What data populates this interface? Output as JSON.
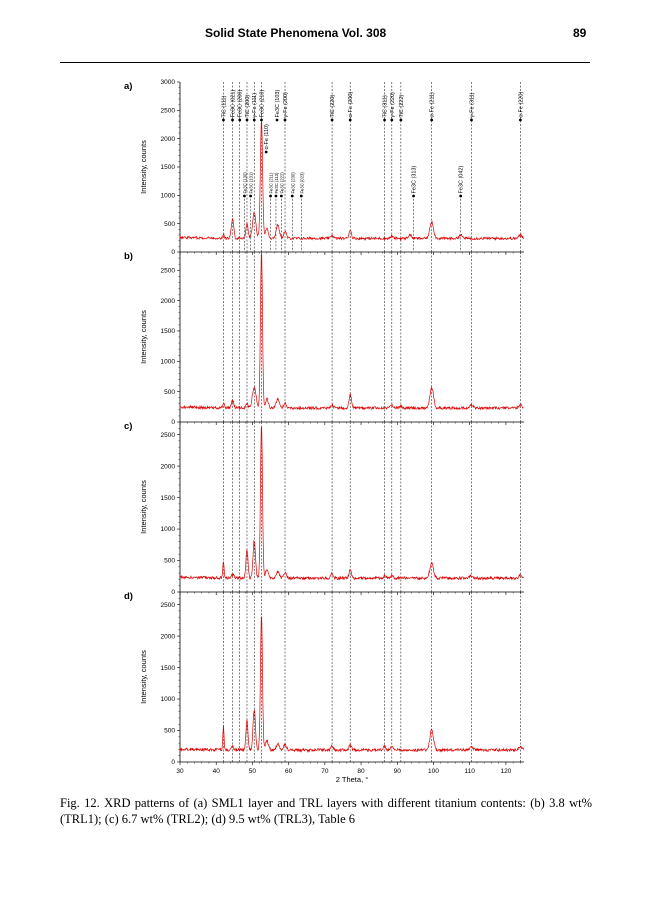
{
  "header": {
    "journal": "Solid State Phenomena Vol. 308",
    "page_number": "89"
  },
  "caption": "Fig. 12. XRD patterns of (a) SML1 layer and TRL layers with different titanium contents: (b) 3.8 wt% (TRL1); (c) 6.7 wt% (TRL2); (d) 9.5 wt% (TRL3), Table 6",
  "colors": {
    "pattern": "#dd0000",
    "axes": "#000000",
    "guide": "#000000"
  },
  "chart_data": {
    "type": "line",
    "xlabel": "2 Theta, °",
    "xlim": [
      30,
      125
    ],
    "x_ticks": [
      30,
      40,
      50,
      60,
      70,
      80,
      90,
      100,
      110,
      120
    ],
    "peak_lines_2theta": [
      42.0,
      44.5,
      46.5,
      48.5,
      50.5,
      52.5,
      59.0,
      72.0,
      77.0,
      86.5,
      88.5,
      91.0,
      99.5,
      110.5,
      124.0
    ],
    "secondary_lines_2theta": [
      47.8,
      49.5,
      55.0,
      56.5,
      58.0,
      61.0,
      63.5,
      94.5,
      107.5
    ],
    "panels": [
      {
        "label": "a)",
        "ylabel": "Intensity, counts",
        "ylim": [
          0,
          3000
        ],
        "y_ticks": [
          0,
          500,
          1000,
          1500,
          2000,
          2500,
          3000
        ],
        "baseline": 240,
        "peaks": [
          [
            42.0,
            60,
            0.4
          ],
          [
            44.5,
            330,
            0.6
          ],
          [
            48.5,
            250,
            0.6
          ],
          [
            50.5,
            460,
            0.8
          ],
          [
            52.5,
            2100,
            0.55
          ],
          [
            54.0,
            180,
            0.7
          ],
          [
            57.0,
            240,
            0.8
          ],
          [
            59.0,
            120,
            0.7
          ],
          [
            72.0,
            60,
            0.6
          ],
          [
            77.0,
            150,
            0.6
          ],
          [
            88.5,
            40,
            0.6
          ],
          [
            93.5,
            60,
            0.8
          ],
          [
            99.5,
            300,
            0.9
          ],
          [
            107.5,
            60,
            0.8
          ],
          [
            124.0,
            60,
            0.8
          ]
        ],
        "peak_labels": [
          {
            "x": 42.0,
            "text": "TiC (111)",
            "size": "large"
          },
          {
            "x": 44.5,
            "text": "Fe3C (021)",
            "size": "large"
          },
          {
            "x": 46.5,
            "text": "Fe3C (200)",
            "size": "large"
          },
          {
            "x": 48.5,
            "text": "TiC (200)",
            "size": "large"
          },
          {
            "x": 50.5,
            "text": "γ-Fe (111)",
            "size": "large"
          },
          {
            "x": 52.5,
            "text": "Fe3C (210)",
            "size": "large"
          },
          {
            "x": 53.8,
            "text": "α-Fe (110)",
            "size": "large"
          },
          {
            "x": 56.8,
            "text": "Fe3C (103)",
            "size": "large"
          },
          {
            "x": 59.0,
            "text": "γ-Fe (200)",
            "size": "large"
          },
          {
            "x": 72.0,
            "text": "TiC (220)",
            "size": "large"
          },
          {
            "x": 77.0,
            "text": "α-Fe (200)",
            "size": "large"
          },
          {
            "x": 86.5,
            "text": "TiC (311)",
            "size": "large"
          },
          {
            "x": 88.5,
            "text": "γ-Fe (220)",
            "size": "large"
          },
          {
            "x": 91.0,
            "text": "TiC (222)",
            "size": "large"
          },
          {
            "x": 99.5,
            "text": "α-Fe (211)",
            "size": "large"
          },
          {
            "x": 110.5,
            "text": "γ-Fe (311)",
            "size": "large"
          },
          {
            "x": 124.0,
            "text": "α-Fe (220)",
            "size": "large"
          },
          {
            "x": 47.8,
            "text": "Fe3C (130)",
            "size": "small"
          },
          {
            "x": 49.5,
            "text": "Fe3C (131)",
            "size": "small"
          },
          {
            "x": 55.0,
            "text": "Fe3C (211)",
            "size": "small"
          },
          {
            "x": 56.5,
            "text": "Fe3C (113)",
            "size": "small"
          },
          {
            "x": 58.0,
            "text": "Fe3C (222)",
            "size": "small"
          },
          {
            "x": 61.0,
            "text": "Fe3C (230)",
            "size": "small"
          },
          {
            "x": 63.5,
            "text": "Fe3C (023)",
            "size": "small"
          },
          {
            "x": 94.5,
            "text": "Fe3C (313)",
            "size": "large"
          },
          {
            "x": 107.5,
            "text": "Fe3C (042)",
            "size": "large"
          }
        ]
      },
      {
        "label": "b)",
        "ylabel": "Intensity, counts",
        "ylim": [
          0,
          2800
        ],
        "y_ticks": [
          0,
          500,
          1000,
          1500,
          2000,
          2500
        ],
        "baseline": 230,
        "peaks": [
          [
            42.0,
            80,
            0.4
          ],
          [
            44.5,
            120,
            0.6
          ],
          [
            48.5,
            70,
            0.5
          ],
          [
            50.5,
            350,
            0.9
          ],
          [
            52.5,
            2600,
            0.5
          ],
          [
            54.0,
            150,
            0.7
          ],
          [
            57.0,
            150,
            0.8
          ],
          [
            59.0,
            80,
            0.7
          ],
          [
            72.0,
            60,
            0.6
          ],
          [
            77.0,
            220,
            0.6
          ],
          [
            88.5,
            60,
            0.6
          ],
          [
            91.0,
            40,
            0.6
          ],
          [
            99.5,
            340,
            0.9
          ],
          [
            110.5,
            50,
            0.8
          ],
          [
            124.0,
            50,
            0.8
          ]
        ]
      },
      {
        "label": "c)",
        "ylabel": "Intensity, counts",
        "ylim": [
          0,
          2700
        ],
        "y_ticks": [
          0,
          500,
          1000,
          1500,
          2000,
          2500
        ],
        "baseline": 220,
        "peaks": [
          [
            42.0,
            260,
            0.3
          ],
          [
            44.5,
            60,
            0.6
          ],
          [
            48.5,
            460,
            0.5
          ],
          [
            50.5,
            600,
            0.6
          ],
          [
            52.5,
            2450,
            0.5
          ],
          [
            54.0,
            150,
            0.7
          ],
          [
            57.0,
            100,
            0.8
          ],
          [
            59.0,
            80,
            0.7
          ],
          [
            72.0,
            70,
            0.6
          ],
          [
            77.0,
            130,
            0.6
          ],
          [
            86.5,
            40,
            0.6
          ],
          [
            88.5,
            50,
            0.6
          ],
          [
            99.5,
            240,
            0.9
          ],
          [
            110.5,
            40,
            0.8
          ],
          [
            124.0,
            50,
            0.8
          ]
        ]
      },
      {
        "label": "d)",
        "ylabel": "Intensity, counts",
        "ylim": [
          0,
          2700
        ],
        "y_ticks": [
          0,
          500,
          1000,
          1500,
          2000,
          2500
        ],
        "baseline": 190,
        "peaks": [
          [
            42.0,
            380,
            0.3
          ],
          [
            44.5,
            50,
            0.6
          ],
          [
            48.5,
            480,
            0.5
          ],
          [
            50.5,
            650,
            0.6
          ],
          [
            52.5,
            2150,
            0.5
          ],
          [
            54.0,
            150,
            0.7
          ],
          [
            57.0,
            90,
            0.8
          ],
          [
            59.0,
            90,
            0.7
          ],
          [
            72.0,
            80,
            0.6
          ],
          [
            77.0,
            90,
            0.6
          ],
          [
            86.5,
            60,
            0.6
          ],
          [
            88.5,
            50,
            0.6
          ],
          [
            99.5,
            320,
            0.9
          ],
          [
            110.5,
            50,
            0.8
          ],
          [
            124.0,
            50,
            0.8
          ]
        ]
      }
    ]
  }
}
